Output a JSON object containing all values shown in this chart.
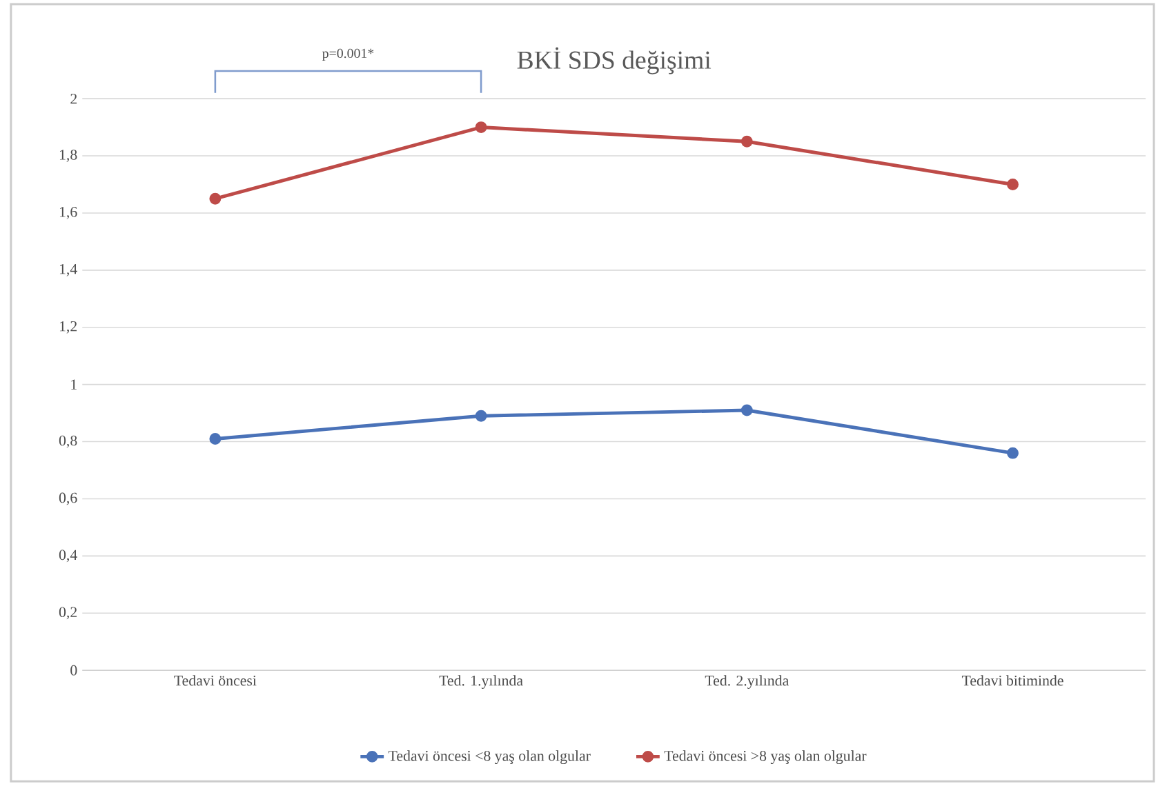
{
  "chart_data": {
    "type": "line",
    "title": "BKİ SDS değişimi",
    "categories": [
      "Tedavi öncesi",
      "Ted. 1.yılında",
      "Ted. 2.yılında",
      "Tedavi bitiminde"
    ],
    "series": [
      {
        "name": "Tedavi öncesi <8 yaş olan olgular",
        "color": "#4a72b8",
        "values": [
          0.81,
          0.89,
          0.91,
          0.76
        ]
      },
      {
        "name": "Tedavi öncesi >8 yaş olan olgular",
        "color": "#be4b48",
        "values": [
          1.65,
          1.9,
          1.85,
          1.7
        ]
      }
    ],
    "ylim": [
      0,
      2
    ],
    "yticks": [
      0,
      {
        "value": 0.2,
        "label": "0,2"
      },
      {
        "value": 0.4,
        "label": "0,4"
      },
      {
        "value": 0.6,
        "label": "0,6"
      },
      {
        "value": 0.8,
        "label": "0,8"
      },
      1,
      {
        "value": 1.2,
        "label": "1,2"
      },
      {
        "value": 1.4,
        "label": "1,4"
      },
      {
        "value": 1.6,
        "label": "1,6"
      },
      {
        "value": 1.8,
        "label": "1,8"
      },
      2
    ],
    "annotations": [
      "p=0.001*"
    ],
    "grid": "y",
    "legend": "bottom",
    "marker": "circle",
    "line_style": "solid"
  }
}
